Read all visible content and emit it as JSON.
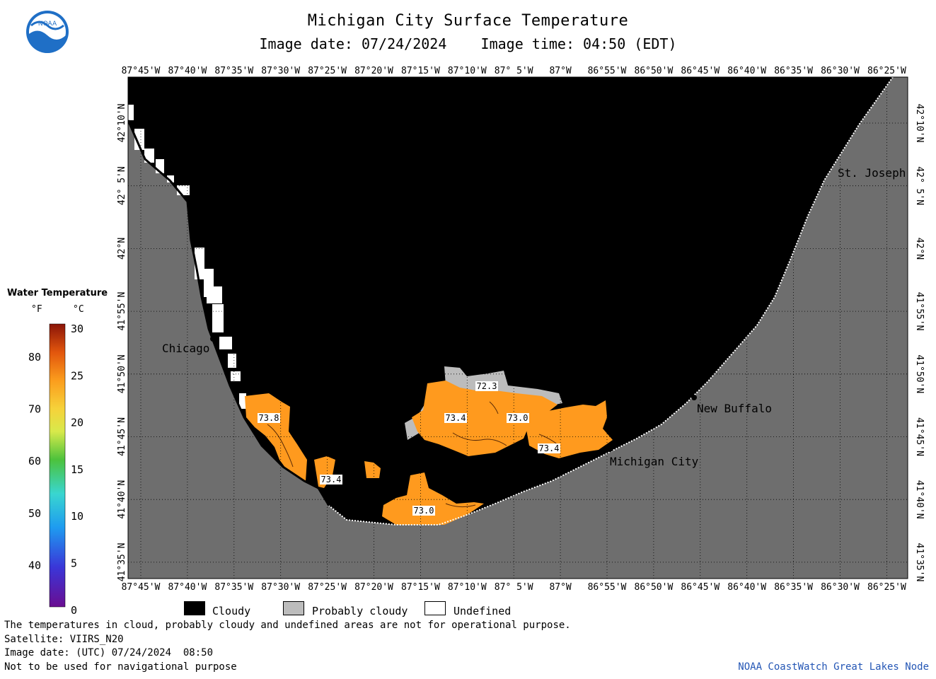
{
  "header": {
    "title": "Michigan City Surface Temperature",
    "subtitle": "Image date: 07/24/2024    Image time: 04:50 (EDT)"
  },
  "logo": {
    "text": "NOAA",
    "icon": "noaa-logo"
  },
  "colors": {
    "land": "#6e6e6e",
    "cloud": "#000000",
    "probably_cloudy": "#bcbcbc",
    "undefined": "#ffffff",
    "water_warm": "#ff9a1e"
  },
  "map": {
    "lon_labels": [
      "87°45'W",
      "87°40'W",
      "87°35'W",
      "87°30'W",
      "87°25'W",
      "87°20'W",
      "87°15'W",
      "87°10'W",
      "87° 5'W",
      "87°W",
      "86°55'W",
      "86°50'W",
      "86°45'W",
      "86°40'W",
      "86°35'W",
      "86°30'W",
      "86°25'W"
    ],
    "lat_labels": [
      "42°10'N",
      "42° 5'N",
      "42°N",
      "41°55'N",
      "41°50'N",
      "41°45'N",
      "41°40'N",
      "41°35'N"
    ],
    "cities": [
      "Chicago",
      "New Buffalo",
      "Michigan City",
      "St. Joseph"
    ],
    "temp_labels": [
      "72.3",
      "73.8",
      "73.4",
      "73.0",
      "73.4",
      "73.4",
      "73.0"
    ]
  },
  "legend": {
    "title": "Water Temperature",
    "unit_f": "°F",
    "unit_c": "°C",
    "f_ticks": [
      "80",
      "70",
      "60",
      "50",
      "40"
    ],
    "c_ticks": [
      "30",
      "25",
      "20",
      "15",
      "10",
      "5",
      "0"
    ]
  },
  "key": {
    "cloudy": "Cloudy",
    "probably_cloudy": "Probably cloudy",
    "undefined": "Undefined"
  },
  "footer": {
    "note": "The temperatures in cloud, probably cloudy and undefined areas are not for operational purpose.",
    "satellite": "Satellite: VIIRS_N20",
    "utc_date": "Image date: (UTC) 07/24/2024  08:50",
    "disclaimer": "Not to be used for navigational purpose",
    "credit": "NOAA CoastWatch Great Lakes Node"
  }
}
